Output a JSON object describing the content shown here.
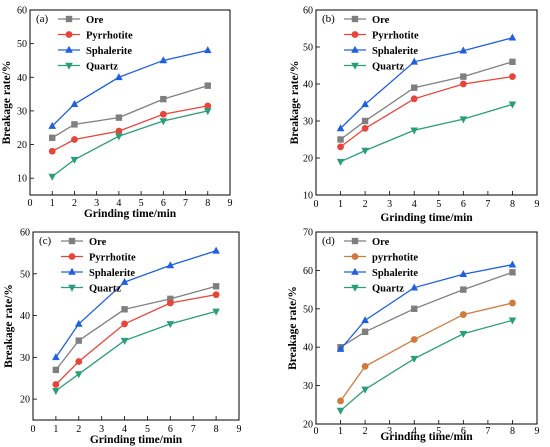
{
  "colors": {
    "ore": "#7f7f7f",
    "pyrrhotite": "#e8443a",
    "sphalerite": "#1f5fe0",
    "quartz": "#2a9d7a",
    "pyrrhotite_d": "#d07a3c"
  },
  "chart_data": [
    {
      "type": "line",
      "panel": "(a)",
      "xlabel": "Grinding time/min",
      "ylabel": "Breakage rate/%",
      "xlim": [
        0,
        9
      ],
      "ylim": [
        5,
        60
      ],
      "xticks": [
        "0",
        "1",
        "2",
        "3",
        "4",
        "5",
        "6",
        "7",
        "8",
        "9"
      ],
      "yticks": [
        "10",
        "20",
        "30",
        "40",
        "50",
        "60"
      ],
      "yticks_values": [
        10,
        20,
        30,
        40,
        50,
        60
      ],
      "x": [
        1,
        2,
        4,
        6,
        8
      ],
      "legend_position": "top-left",
      "series": [
        {
          "name": "Ore",
          "marker": "square",
          "color_key": "ore",
          "values": [
            22.0,
            26.0,
            28.0,
            33.5,
            37.5
          ]
        },
        {
          "name": "Pyrrhotite",
          "marker": "circle",
          "color_key": "pyrrhotite",
          "values": [
            18.0,
            21.5,
            24.0,
            29.0,
            31.5
          ]
        },
        {
          "name": "Sphalerite",
          "marker": "triangle-up",
          "color_key": "sphalerite",
          "values": [
            25.5,
            32.0,
            40.0,
            45.0,
            48.0
          ]
        },
        {
          "name": "Quartz",
          "marker": "triangle-down",
          "color_key": "quartz",
          "values": [
            10.5,
            15.5,
            22.5,
            27.0,
            30.0
          ]
        }
      ]
    },
    {
      "type": "line",
      "panel": "(b)",
      "xlabel": "Grinding time/min",
      "ylabel": "Breakage rate/%",
      "xlim": [
        0,
        9
      ],
      "ylim": [
        10,
        60
      ],
      "xticks": [
        "0",
        "1",
        "2",
        "3",
        "4",
        "5",
        "6",
        "7",
        "8",
        "9"
      ],
      "yticks": [
        "10",
        "20",
        "30",
        "40",
        "50",
        "60"
      ],
      "yticks_values": [
        10,
        20,
        30,
        40,
        50,
        60
      ],
      "x": [
        1,
        2,
        4,
        6,
        8
      ],
      "legend_position": "top-left",
      "series": [
        {
          "name": "Ore",
          "marker": "square",
          "color_key": "ore",
          "values": [
            25.0,
            30.0,
            39.0,
            42.0,
            46.0
          ]
        },
        {
          "name": "Pyrrhotite",
          "marker": "circle",
          "color_key": "pyrrhotite",
          "values": [
            23.0,
            28.0,
            36.0,
            40.0,
            42.0
          ]
        },
        {
          "name": "Sphalerite",
          "marker": "triangle-up",
          "color_key": "sphalerite",
          "values": [
            28.0,
            34.5,
            46.0,
            49.0,
            52.5
          ]
        },
        {
          "name": "Quartz",
          "marker": "triangle-down",
          "color_key": "quartz",
          "values": [
            19.0,
            22.0,
            27.5,
            30.5,
            34.5
          ]
        }
      ]
    },
    {
      "type": "line",
      "panel": "(c)",
      "xlabel": "Grinding time/min",
      "ylabel": "Breakage rate/%",
      "xlim": [
        0,
        9
      ],
      "ylim": [
        15,
        60
      ],
      "xticks": [
        "0",
        "1",
        "2",
        "3",
        "4",
        "5",
        "6",
        "7",
        "8",
        "9"
      ],
      "yticks": [
        "20",
        "30",
        "40",
        "50",
        "60"
      ],
      "yticks_values": [
        20,
        30,
        40,
        50,
        60
      ],
      "x": [
        1,
        2,
        4,
        6,
        8
      ],
      "legend_position": "top-left",
      "series": [
        {
          "name": "Ore",
          "marker": "square",
          "color_key": "ore",
          "values": [
            27.0,
            34.0,
            41.5,
            44.0,
            47.0
          ]
        },
        {
          "name": "Pyrrhotite",
          "marker": "circle",
          "color_key": "pyrrhotite",
          "values": [
            23.5,
            29.0,
            38.0,
            43.0,
            45.0
          ]
        },
        {
          "name": "Sphalerite",
          "marker": "triangle-up",
          "color_key": "sphalerite",
          "values": [
            30.0,
            38.0,
            48.0,
            52.0,
            55.5
          ]
        },
        {
          "name": "Quartz",
          "marker": "triangle-down",
          "color_key": "quartz",
          "values": [
            22.0,
            26.0,
            34.0,
            38.0,
            41.0
          ]
        }
      ]
    },
    {
      "type": "line",
      "panel": "(d)",
      "xlabel": "Grinding time/min",
      "ylabel": "Breakage rate/%",
      "xlim": [
        0,
        9
      ],
      "ylim": [
        20,
        70
      ],
      "xticks": [
        "0",
        "1",
        "2",
        "3",
        "4",
        "5",
        "6",
        "7",
        "8",
        "9"
      ],
      "yticks": [
        "20",
        "30",
        "40",
        "50",
        "60",
        "70"
      ],
      "yticks_values": [
        20,
        30,
        40,
        50,
        60,
        70
      ],
      "x": [
        1,
        2,
        4,
        6,
        8
      ],
      "legend_position": "top-left",
      "series": [
        {
          "name": "Ore",
          "marker": "square",
          "color_key": "ore",
          "values": [
            40.0,
            44.0,
            50.0,
            55.0,
            59.5
          ]
        },
        {
          "name": "pyrrhotite",
          "marker": "circle",
          "color_key": "pyrrhotite_d",
          "values": [
            26.0,
            35.0,
            42.0,
            48.5,
            51.5
          ]
        },
        {
          "name": "Sphalerite",
          "marker": "triangle-up",
          "color_key": "sphalerite",
          "values": [
            39.5,
            47.0,
            55.5,
            59.0,
            61.5
          ]
        },
        {
          "name": "Quartz",
          "marker": "triangle-down",
          "color_key": "quartz",
          "values": [
            23.5,
            29.0,
            37.0,
            43.5,
            47.0
          ]
        }
      ]
    }
  ]
}
